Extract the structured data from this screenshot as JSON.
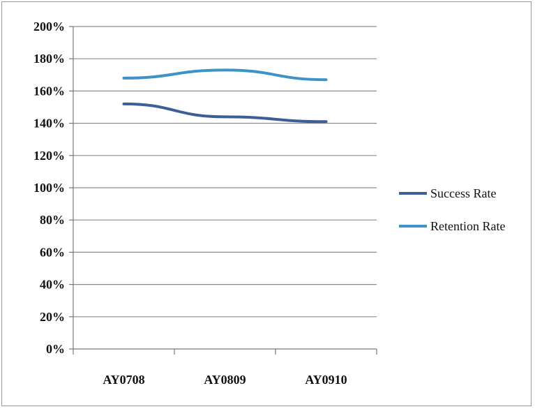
{
  "chart_data": {
    "type": "line",
    "categories": [
      "AY0708",
      "AY0809",
      "AY0910"
    ],
    "series": [
      {
        "name": "Success Rate",
        "values": [
          152,
          144,
          141
        ],
        "color": "#3b5f96"
      },
      {
        "name": "Retention Rate",
        "values": [
          168,
          173,
          167
        ],
        "color": "#3d93c6"
      }
    ],
    "y_ticks": [
      "0%",
      "20%",
      "40%",
      "60%",
      "80%",
      "100%",
      "120%",
      "140%",
      "160%",
      "180%",
      "200%"
    ],
    "ylim": [
      0,
      200
    ],
    "y_unit": "%",
    "grid": true,
    "legend_position": "right"
  }
}
